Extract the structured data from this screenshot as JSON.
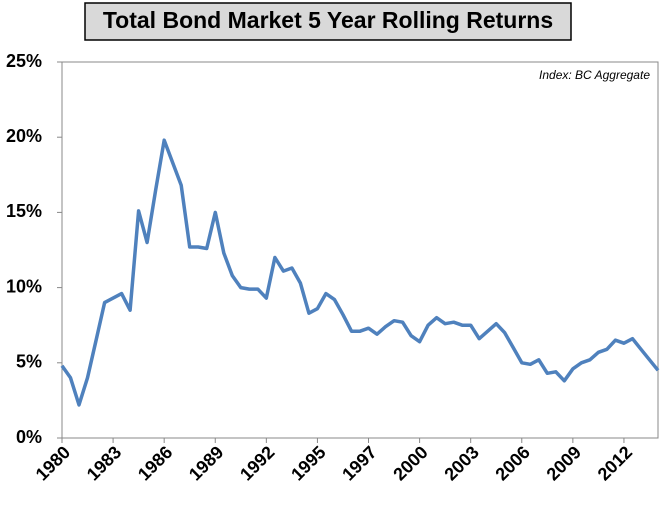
{
  "chart_data": {
    "type": "line",
    "title": "Total Bond Market 5 Year Rolling Returns",
    "annotation": "Index: BC Aggregate",
    "categories": [
      "1980",
      null,
      null,
      null,
      null,
      null,
      "1983",
      null,
      null,
      null,
      null,
      null,
      "1986",
      null,
      null,
      null,
      null,
      null,
      "1989",
      null,
      null,
      null,
      null,
      null,
      "1992",
      null,
      null,
      null,
      null,
      null,
      "1995",
      null,
      null,
      null,
      null,
      null,
      "1997",
      null,
      null,
      null,
      null,
      null,
      "2000",
      null,
      null,
      null,
      null,
      null,
      "2003",
      null,
      null,
      null,
      null,
      null,
      "2006",
      null,
      null,
      null,
      null,
      null,
      "2009",
      null,
      null,
      null,
      null,
      null,
      "2012",
      null,
      null,
      null,
      null
    ],
    "series": [
      {
        "name": "5 Year Rolling Return",
        "color": "#4f81bd",
        "values": [
          4.8,
          4.0,
          2.2,
          4.0,
          6.5,
          9.0,
          9.3,
          9.6,
          8.5,
          15.1,
          13.0,
          16.5,
          19.8,
          18.3,
          16.8,
          12.7,
          12.7,
          12.6,
          15.0,
          12.3,
          10.8,
          10.0,
          9.9,
          9.9,
          9.3,
          12.0,
          11.1,
          11.3,
          10.3,
          8.3,
          8.6,
          9.6,
          9.2,
          8.2,
          7.1,
          7.1,
          7.3,
          6.9,
          7.4,
          7.8,
          7.7,
          6.8,
          6.4,
          7.5,
          8.0,
          7.6,
          7.7,
          7.5,
          7.5,
          6.6,
          7.1,
          7.6,
          7.0,
          6.0,
          5.0,
          4.9,
          5.2,
          4.3,
          4.4,
          3.8,
          4.6,
          5.0,
          5.2,
          5.7,
          5.9,
          6.5,
          6.3,
          6.6,
          5.9,
          5.2,
          4.5
        ]
      }
    ],
    "ylim": [
      0,
      25
    ],
    "yticks": [
      {
        "value": 0,
        "label": "0%"
      },
      {
        "value": 5,
        "label": "5%"
      },
      {
        "value": 10,
        "label": "10%"
      },
      {
        "value": 15,
        "label": "15%"
      },
      {
        "value": 20,
        "label": "20%"
      },
      {
        "value": 25,
        "label": "25%"
      }
    ],
    "grid": false
  }
}
